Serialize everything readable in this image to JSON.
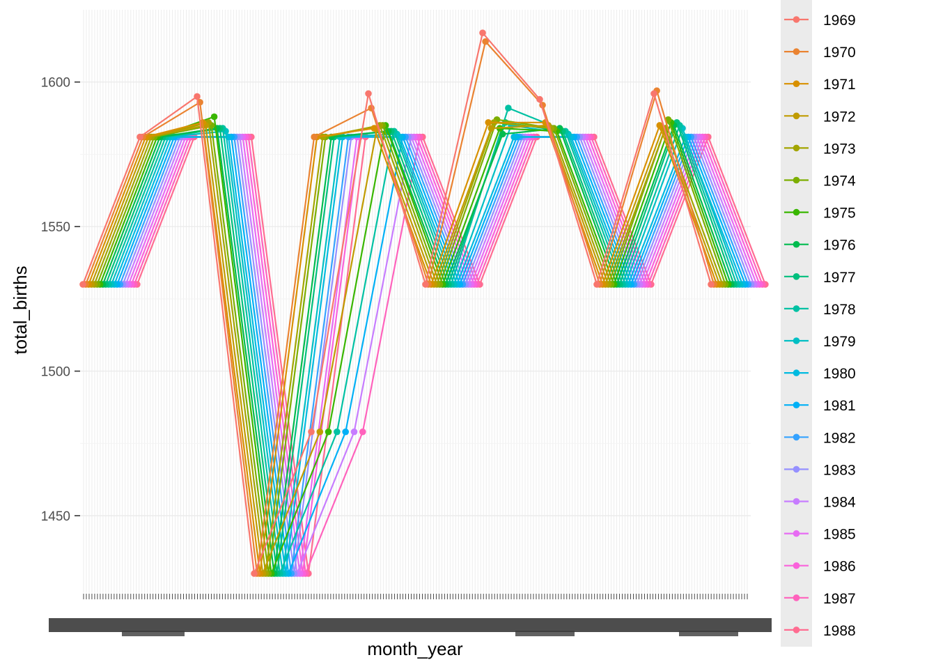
{
  "chart_data": {
    "type": "line",
    "xlabel": "month_year",
    "ylabel": "total_births",
    "y_ticks": [
      1450,
      1500,
      1550,
      1600
    ],
    "ylim": [
      1423,
      1625
    ],
    "grid": true,
    "legend_placement": "right",
    "x_tick_labels_legible": false,
    "series": [
      {
        "name": "1969",
        "color": "#F8766D"
      },
      {
        "name": "1970",
        "color": "#EA8331"
      },
      {
        "name": "1971",
        "color": "#D89000"
      },
      {
        "name": "1972",
        "color": "#C09B00"
      },
      {
        "name": "1973",
        "color": "#A3A500"
      },
      {
        "name": "1974",
        "color": "#7CAE00"
      },
      {
        "name": "1975",
        "color": "#39B600"
      },
      {
        "name": "1976",
        "color": "#00BB4E"
      },
      {
        "name": "1977",
        "color": "#00BF7D"
      },
      {
        "name": "1978",
        "color": "#00C1A3"
      },
      {
        "name": "1979",
        "color": "#00BFC4"
      },
      {
        "name": "1980",
        "color": "#00BAE0"
      },
      {
        "name": "1981",
        "color": "#00B0F6"
      },
      {
        "name": "1982",
        "color": "#35A2FF"
      },
      {
        "name": "1983",
        "color": "#9590FF"
      },
      {
        "name": "1984",
        "color": "#C77CFF"
      },
      {
        "name": "1985",
        "color": "#E76BF3"
      },
      {
        "name": "1986",
        "color": "#FA62DB"
      },
      {
        "name": "1987",
        "color": "#FF62BC"
      },
      {
        "name": "1988",
        "color": "#FF6C91"
      }
    ],
    "pattern_months": [
      1530,
      1581,
      1581,
      1430,
      1581,
      1581,
      1530,
      1581,
      1581,
      1530,
      1581,
      1530
    ],
    "peaks": {
      "1969": [
        1595,
        1596,
        1617,
        1594,
        1596
      ],
      "1970": [
        1593,
        1591,
        1614,
        1592,
        1597
      ],
      "1971": [
        1586,
        1584,
        1586,
        1586,
        1585
      ],
      "1972": [
        1585,
        1584,
        1584,
        1585,
        1584
      ],
      "1973": [
        1586,
        1585,
        1586,
        1584,
        1584
      ],
      "1974": [
        1585,
        1585,
        1587,
        1584,
        1587
      ],
      "1975": [
        1588,
        1585,
        1584,
        1583,
        1586
      ],
      "1976": [
        1584,
        1583,
        1582,
        1584,
        1585
      ],
      "1977": [
        1584,
        1583,
        1586,
        1583,
        1586
      ],
      "1978": [
        1584,
        1583,
        1591,
        1583,
        1585
      ],
      "1979": [
        1583,
        1582,
        1585,
        1582,
        1584
      ]
    }
  }
}
